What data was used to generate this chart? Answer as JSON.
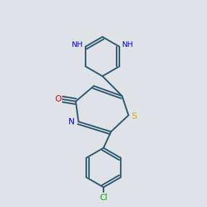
{
  "background_color": "#dfe3e8",
  "bond_color": "#2d5a6e",
  "atom_colors": {
    "N": "#0000ee",
    "O": "#ee0000",
    "S": "#ccaa00",
    "Cl": "#00aa00"
  },
  "figsize": [
    3.0,
    3.0
  ],
  "dpi": 100
}
